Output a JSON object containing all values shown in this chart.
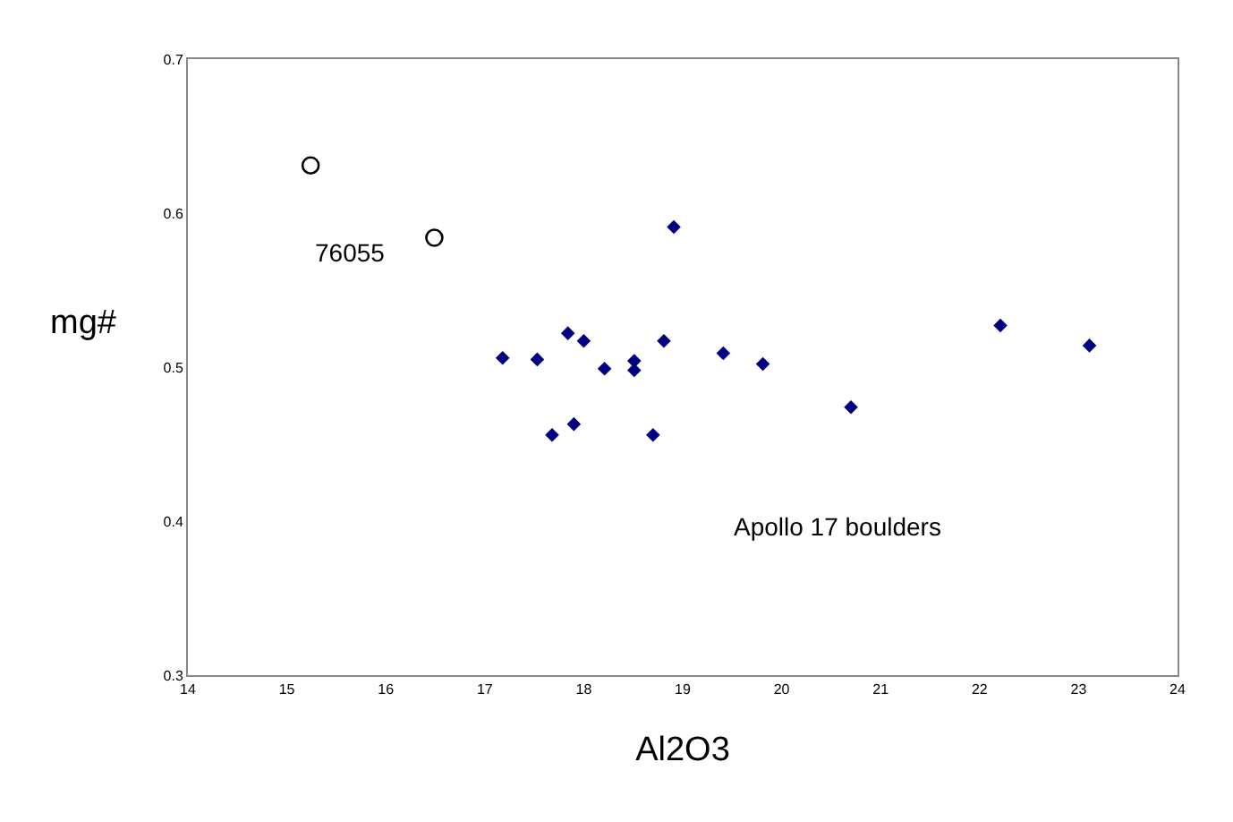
{
  "chart_data": {
    "type": "scatter",
    "xlabel": "Al2O3",
    "ylabel": "mg#",
    "xlim": [
      14,
      24
    ],
    "xticks": [
      14,
      15,
      16,
      17,
      18,
      19,
      20,
      21,
      22,
      23,
      24
    ],
    "ylim": [
      0.3,
      0.7
    ],
    "yticks": [
      0.3,
      0.4,
      0.5,
      0.6,
      0.7
    ],
    "series": [
      {
        "color": "#000000",
        "marker": "circle-open",
        "x": [
          15.24,
          16.49
        ],
        "values": [
          0.631,
          0.584
        ]
      },
      {
        "color": "#000080",
        "marker": "diamond",
        "x": [
          17.18,
          17.53,
          17.68,
          17.84,
          17.9,
          18.0,
          18.21,
          18.51,
          18.51,
          18.7,
          18.81,
          18.91,
          19.41,
          19.81,
          20.7,
          22.21,
          23.11
        ],
        "values": [
          0.506,
          0.505,
          0.456,
          0.522,
          0.463,
          0.517,
          0.499,
          0.504,
          0.498,
          0.456,
          0.517,
          0.591,
          0.509,
          0.502,
          0.474,
          0.527,
          0.514
        ]
      }
    ],
    "annotations": [
      "76055",
      "Apollo 17 boulders"
    ]
  }
}
